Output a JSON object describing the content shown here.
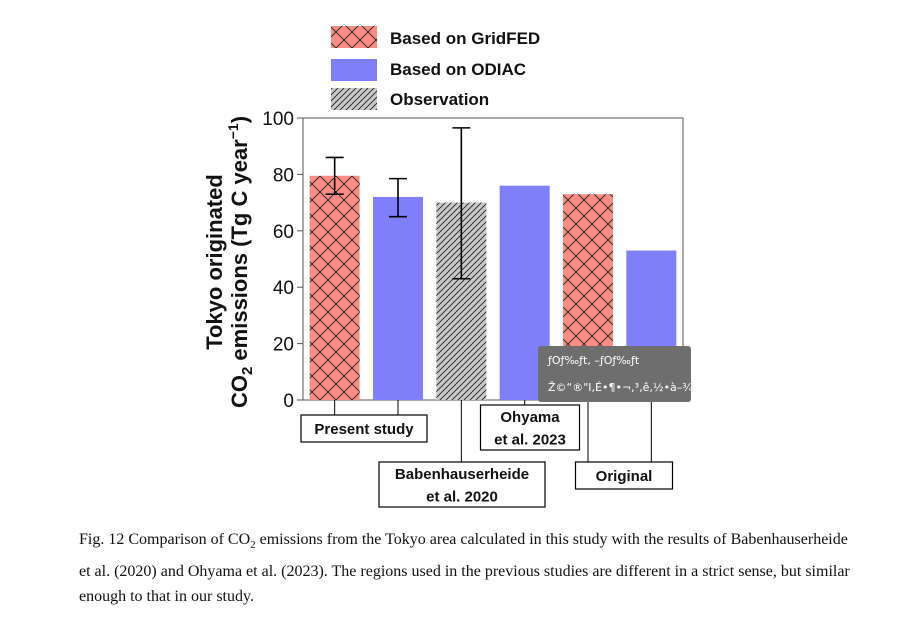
{
  "chart_data": {
    "type": "bar",
    "categories": [
      "Present study (GridFED)",
      "Present study (ODIAC)",
      "Babenhauserheide et al. 2020",
      "Ohyama et al. 2023",
      "Original (GridFED)",
      "Original (ODIAC)"
    ],
    "values": [
      79.5,
      72,
      70,
      76,
      73,
      53
    ],
    "bar_kind": [
      "gridfed",
      "odiac",
      "observation",
      "odiac",
      "gridfed",
      "odiac"
    ],
    "error_bars": [
      [
        73,
        86
      ],
      [
        65,
        78.5
      ],
      [
        43,
        96.5
      ],
      null,
      null,
      null
    ],
    "legend": [
      {
        "key": "gridfed",
        "label": "Based on GridFED"
      },
      {
        "key": "odiac",
        "label": "Based on ODIAC"
      },
      {
        "key": "observation",
        "label": "Observation"
      }
    ],
    "ylabel_line1": "Tokyo originated",
    "ylabel_line2_prefix": "CO",
    "ylabel_line2_sub": "2",
    "ylabel_line2_mid": " emissions (Tg C year",
    "ylabel_line2_sup": "−1",
    "ylabel_line2_end": ")",
    "ylim": [
      0,
      100
    ],
    "yticks": [
      "0",
      "20",
      "40",
      "60",
      "80",
      "100"
    ],
    "group_labels": [
      {
        "lines": [
          "Present study"
        ],
        "bars": [
          0,
          1
        ]
      },
      {
        "lines": [
          "Babenhauserheide",
          "et al. 2020"
        ],
        "bars": [
          2
        ]
      },
      {
        "lines": [
          "Ohyama",
          "et al. 2023"
        ],
        "bars": [
          3
        ]
      },
      {
        "lines": [
          "Original"
        ],
        "bars": [
          4,
          5
        ]
      }
    ],
    "colors": {
      "gridfed": "#fa8c84",
      "odiac": "#7f7ffb",
      "observation": "#c8c8c8",
      "hatch": "#222222",
      "tooltip_bg": "#6e6e6e"
    },
    "grid": false
  },
  "tooltip": {
    "line1": "ƒOƒ‰ƒt, –ƒOƒ‰ƒt",
    "line2": "Ž©“®\"I‚É•¶•¬,³‚ê‚½•à–¾"
  },
  "caption": {
    "part1": "Fig. 12 Comparison of CO",
    "sub": "2",
    "part2": " emissions from the Tokyo area calculated in this study with the results of Babenhauserheide et al. (2020) and Ohyama et al. (2023). The regions used in the previous studies are different in a strict sense, but similar enough to that in our study."
  }
}
